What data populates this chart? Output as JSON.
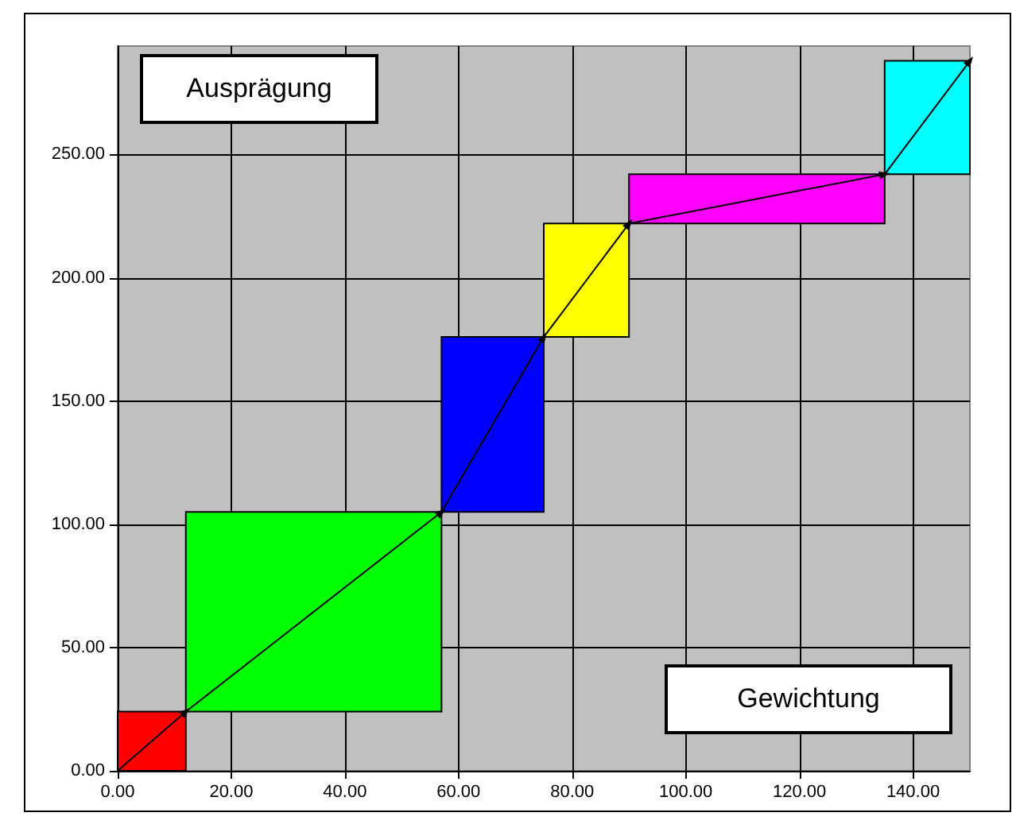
{
  "chart_data": {
    "type": "line",
    "xlabel": "Gewichtung",
    "ylabel": "Ausprägung",
    "series": [
      {
        "type": "histogram",
        "bins": [
          0,
          12,
          57,
          75,
          90,
          135,
          150
        ],
        "base": [
          0,
          24,
          105,
          176,
          222,
          242
        ],
        "values": [
          24,
          81,
          71,
          46,
          20,
          46
        ],
        "colors": [
          "#ff0000",
          "#00ff00",
          "#0000ff",
          "#ffff00",
          "#ff00ff",
          "#00ffff"
        ]
      },
      {
        "color": "#000000",
        "x": [
          0,
          12,
          57,
          75,
          90,
          135,
          150
        ],
        "values": [
          0,
          24,
          105,
          176,
          222,
          242,
          288
        ]
      }
    ],
    "xlim": [
      0,
      150
    ],
    "ylim": [
      0,
      294
    ],
    "xticks": [
      {
        "value": 0,
        "label": "0.00"
      },
      {
        "value": 20,
        "label": "20.00"
      },
      {
        "value": 40,
        "label": "40.00"
      },
      {
        "value": 60,
        "label": "60.00"
      },
      {
        "value": 80,
        "label": "80.00"
      },
      {
        "value": 100,
        "label": "100.00"
      },
      {
        "value": 120,
        "label": "120.00"
      },
      {
        "value": 140,
        "label": "140.00"
      }
    ],
    "yticks": [
      {
        "value": 0,
        "label": "0.00"
      },
      {
        "value": 50,
        "label": "50.00"
      },
      {
        "value": 100,
        "label": "100.00"
      },
      {
        "value": 150,
        "label": "150.00"
      },
      {
        "value": 200,
        "label": "200.00"
      },
      {
        "value": 250,
        "label": "250.00"
      }
    ],
    "grid": true,
    "marker": "triangle",
    "line_style": "solid"
  }
}
